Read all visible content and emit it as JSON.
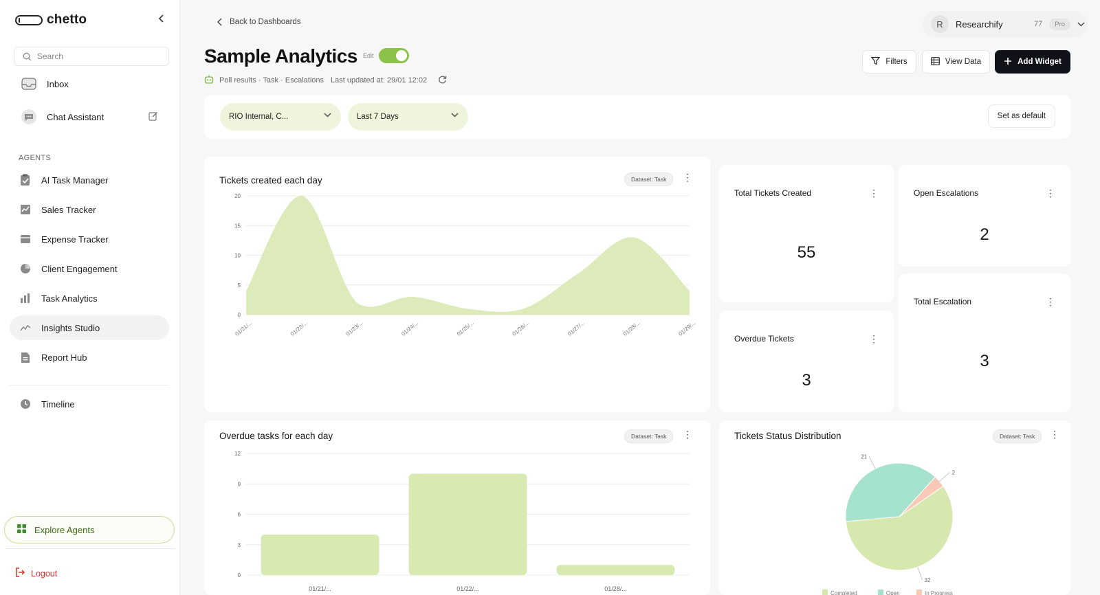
{
  "brand": {
    "name": "chetto"
  },
  "sidebar": {
    "search_placeholder": "Search",
    "top_items": [
      {
        "label": "Inbox",
        "icon": "inbox-icon"
      },
      {
        "label": "Chat Assistant",
        "icon": "chat-bubble-icon"
      }
    ],
    "agents_label": "AGENTS",
    "agents": [
      {
        "label": "AI Task Manager",
        "icon": "task-checklist-icon"
      },
      {
        "label": "Sales Tracker",
        "icon": "chart-trend-icon"
      },
      {
        "label": "Expense Tracker",
        "icon": "wallet-icon"
      },
      {
        "label": "Client Engagement",
        "icon": "pie-chart-icon"
      },
      {
        "label": "Task Analytics",
        "icon": "bar-chart-icon"
      },
      {
        "label": "Insights Studio",
        "icon": "sparkline-icon",
        "active": true
      },
      {
        "label": "Report Hub",
        "icon": "document-icon"
      }
    ],
    "timeline": {
      "label": "Timeline",
      "icon": "clock-icon"
    },
    "explore_label": "Explore Agents",
    "logout_label": "Logout"
  },
  "header": {
    "back_label": "Back to Dashboards",
    "title": "Sample Analytics",
    "edit_label": "Edit",
    "edit_enabled": true,
    "meta_tags": "Poll results · Task · Escalations",
    "last_updated": "Last updated at: 29/01 12:02",
    "account": {
      "initial": "R",
      "name": "Researchify",
      "count": "77",
      "plan": "Pro"
    },
    "buttons": {
      "filters": "Filters",
      "view_data": "View Data",
      "add_widget": "Add Widget"
    }
  },
  "filters": {
    "workspace": "RIO Internal, C...",
    "range": "Last 7 Days",
    "set_default": "Set as default"
  },
  "widgets": {
    "tickets_per_day": {
      "title": "Tickets created each day",
      "dataset": "Dataset: Task"
    },
    "total_tickets": {
      "title": "Total Tickets Created",
      "value": "55"
    },
    "open_escalations": {
      "title": "Open Escalations",
      "value": "2"
    },
    "overdue_tickets": {
      "title": "Overdue Tickets",
      "value": "3"
    },
    "total_escalation": {
      "title": "Total Escalation",
      "value": "3"
    },
    "overdue_per_day": {
      "title": "Overdue tasks for each day",
      "dataset": "Dataset: Task"
    },
    "status_distribution": {
      "title": "Tickets Status Distribution",
      "dataset": "Dataset: Task"
    }
  },
  "colors": {
    "accent": "#8bc34a",
    "area_fill": "#dcebb9",
    "bar_fill": "#d8e9b1",
    "pie_completed": "#d6e8ae",
    "pie_open": "#a6e3cc",
    "pie_in_progress": "#f9c9b8"
  },
  "chart_data": [
    {
      "type": "area",
      "x": [
        "01/21/...",
        "01/22/...",
        "01/23/...",
        "01/24/...",
        "01/25/...",
        "01/26/...",
        "01/27/...",
        "01/28/...",
        "01/29/..."
      ],
      "values": [
        4,
        20,
        2,
        3,
        1,
        1,
        7,
        13,
        4
      ],
      "yticks": [
        0,
        5,
        10,
        15,
        20
      ],
      "ylim": [
        0,
        20
      ],
      "grid": true
    },
    {
      "type": "bar",
      "categories": [
        "01/21/...",
        "01/22/...",
        "01/28/..."
      ],
      "values": [
        4,
        10,
        1
      ],
      "yticks": [
        0,
        3,
        6,
        9,
        12
      ],
      "ylim": [
        0,
        12
      ],
      "grid": true
    },
    {
      "type": "pie",
      "series": [
        {
          "name": "Completed",
          "value": 32
        },
        {
          "name": "Open",
          "value": 21
        },
        {
          "name": "In Progress",
          "value": 2
        }
      ],
      "legend": "bottom"
    }
  ]
}
